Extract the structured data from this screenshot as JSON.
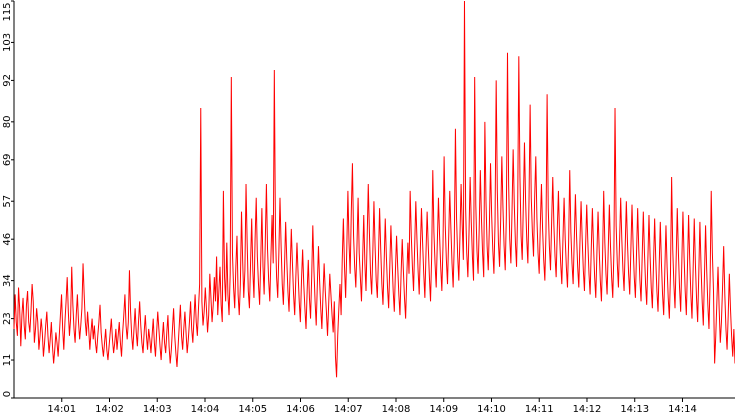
{
  "chart_data": {
    "type": "line",
    "series_color": "#ff0000",
    "axis_color": "#000000",
    "grid": false,
    "legend": "none",
    "y_ticks": [
      0,
      11,
      23,
      34,
      46,
      57,
      69,
      80,
      92,
      103,
      115
    ],
    "ylim": [
      0,
      115
    ],
    "x_ticks": [
      "14:01",
      "14:02",
      "14:03",
      "14:04",
      "14:05",
      "14:06",
      "14:07",
      "14:08",
      "14:09",
      "14:10",
      "14:11",
      "14:12",
      "14:13",
      "14:14"
    ],
    "xlim_minutes": [
      0,
      15.1
    ],
    "x_tick_positions_minutes": [
      1,
      2,
      3,
      4,
      5,
      6,
      7,
      8,
      9,
      10,
      11,
      12,
      13,
      14
    ],
    "series": [
      {
        "values": [
          20,
          30,
          22,
          18,
          32,
          26,
          15,
          24,
          29,
          21,
          17,
          27,
          31,
          22,
          19,
          25,
          33,
          28,
          16,
          20,
          26,
          22,
          14,
          18,
          23,
          19,
          12,
          16,
          21,
          25,
          18,
          13,
          17,
          22,
          15,
          10,
          14,
          19,
          16,
          12,
          18,
          24,
          30,
          20,
          14,
          22,
          28,
          35,
          25,
          18,
          23,
          38,
          27,
          20,
          16,
          24,
          30,
          22,
          17,
          21,
          26,
          39,
          30,
          22,
          18,
          25,
          20,
          14,
          19,
          23,
          17,
          21,
          16,
          13,
          18,
          22,
          27,
          19,
          15,
          12,
          16,
          20,
          14,
          11,
          15,
          19,
          23,
          17,
          13,
          16,
          20,
          14,
          18,
          22,
          16,
          12,
          19,
          24,
          30,
          21,
          17,
          22,
          37,
          25,
          18,
          14,
          20,
          26,
          19,
          15,
          22,
          28,
          21,
          16,
          13,
          19,
          24,
          18,
          14,
          20,
          17,
          13,
          18,
          23,
          16,
          12,
          19,
          25,
          20,
          15,
          11,
          17,
          22,
          16,
          13,
          19,
          24,
          15,
          10,
          14,
          20,
          26,
          18,
          13,
          9,
          15,
          21,
          27,
          18,
          14,
          20,
          25,
          19,
          13,
          17,
          22,
          28,
          20,
          16,
          23,
          30,
          22,
          18,
          26,
          33,
          84,
          28,
          21,
          25,
          32,
          26,
          19,
          24,
          36,
          29,
          22,
          27,
          35,
          28,
          41,
          24,
          31,
          38,
          27,
          22,
          60,
          35,
          28,
          45,
          30,
          24,
          36,
          93,
          42,
          32,
          26,
          38,
          47,
          30,
          24,
          33,
          54,
          40,
          29,
          37,
          62,
          45,
          31,
          26,
          39,
          52,
          37,
          29,
          46,
          58,
          41,
          33,
          27,
          40,
          55,
          38,
          30,
          45,
          62,
          43,
          34,
          28,
          41,
          53,
          39,
          95,
          48,
          35,
          29,
          42,
          58,
          44,
          33,
          27,
          38,
          51,
          40,
          31,
          25,
          37,
          49,
          39,
          30,
          24,
          35,
          45,
          36,
          28,
          22,
          34,
          43,
          33,
          26,
          20,
          31,
          40,
          29,
          23,
          35,
          50,
          37,
          28,
          21,
          33,
          44,
          34,
          26,
          20,
          30,
          39,
          31,
          25,
          18,
          27,
          36,
          30,
          24,
          19,
          28,
          12,
          6,
          18,
          26,
          33,
          24,
          40,
          52,
          38,
          29,
          43,
          60,
          45,
          36,
          54,
          68,
          47,
          38,
          32,
          44,
          58,
          42,
          35,
          28,
          40,
          53,
          39,
          31,
          46,
          62,
          48,
          36,
          30,
          42,
          57,
          44,
          34,
          29,
          41,
          55,
          43,
          33,
          27,
          39,
          52,
          41,
          32,
          26,
          38,
          50,
          40,
          31,
          25,
          37,
          47,
          38,
          30,
          24,
          36,
          46,
          37,
          29,
          23,
          35,
          45,
          36,
          60,
          47,
          38,
          31,
          44,
          57,
          46,
          37,
          30,
          43,
          55,
          45,
          36,
          29,
          42,
          54,
          44,
          35,
          28,
          41,
          66,
          48,
          39,
          32,
          45,
          58,
          47,
          38,
          31,
          44,
          70,
          50,
          40,
          33,
          46,
          60,
          49,
          39,
          32,
          45,
          78,
          52,
          41,
          34,
          47,
          62,
          50,
          40,
          115,
          55,
          42,
          35,
          48,
          64,
          51,
          41,
          34,
          93,
          56,
          43,
          36,
          49,
          66,
          52,
          42,
          35,
          80,
          57,
          44,
          37,
          50,
          68,
          53,
          43,
          36,
          51,
          92,
          60,
          45,
          38,
          52,
          70,
          55,
          44,
          37,
          53,
          100,
          62,
          46,
          39,
          54,
          72,
          56,
          45,
          38,
          55,
          99,
          64,
          47,
          40,
          56,
          74,
          57,
          46,
          39,
          57,
          85,
          58,
          48,
          41,
          58,
          70,
          52,
          42,
          36,
          50,
          62,
          49,
          40,
          34,
          48,
          88,
          55,
          44,
          37,
          51,
          64,
          50,
          41,
          35,
          49,
          60,
          47,
          39,
          33,
          46,
          58,
          46,
          38,
          32,
          45,
          66,
          48,
          39,
          33,
          46,
          59,
          47,
          38,
          32,
          45,
          57,
          46,
          37,
          31,
          44,
          56,
          45,
          36,
          30,
          43,
          55,
          44,
          35,
          29,
          42,
          54,
          43,
          34,
          28,
          41,
          60,
          45,
          36,
          30,
          43,
          56,
          44,
          35,
          29,
          42,
          84,
          50,
          39,
          32,
          45,
          58,
          46,
          37,
          31,
          44,
          57,
          45,
          36,
          30,
          43,
          56,
          44,
          35,
          29,
          42,
          55,
          43,
          34,
          28,
          41,
          54,
          42,
          33,
          27,
          40,
          53,
          41,
          32,
          26,
          39,
          52,
          40,
          31,
          25,
          38,
          51,
          39,
          30,
          24,
          37,
          50,
          38,
          29,
          23,
          36,
          64,
          43,
          33,
          26,
          40,
          55,
          42,
          32,
          25,
          39,
          54,
          41,
          31,
          24,
          38,
          53,
          40,
          30,
          23,
          37,
          52,
          39,
          29,
          22,
          36,
          51,
          38,
          28,
          21,
          35,
          50,
          37,
          27,
          20,
          34,
          60,
          42,
          31,
          10,
          18,
          28,
          38,
          26,
          16,
          22,
          32,
          44,
          30,
          20,
          14,
          24,
          36,
          26,
          18,
          12,
          20,
          10
        ]
      }
    ]
  }
}
